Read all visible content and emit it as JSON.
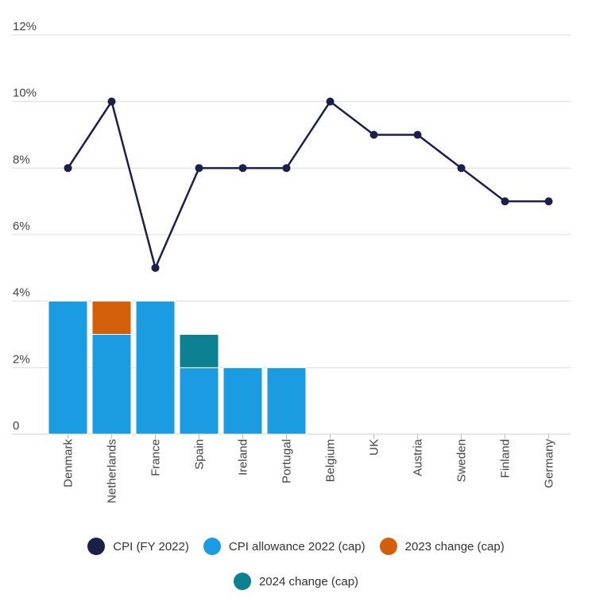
{
  "chart_data": {
    "type": "bar",
    "categories": [
      "Denmark",
      "Netherlands",
      "France",
      "Spain",
      "Ireland",
      "Portugal",
      "Belgium",
      "UK",
      "Austria",
      "Sweden",
      "Finland",
      "Germany"
    ],
    "ylim": [
      0,
      12
    ],
    "yticks": [
      "0",
      "2%",
      "4%",
      "6%",
      "8%",
      "10%",
      "12%"
    ],
    "grid": true,
    "legend_placement": "bottom",
    "series": [
      {
        "name": "CPI (FY 2022)",
        "kind": "line",
        "color": "#1b1f4b",
        "values": [
          8,
          10,
          5,
          8,
          8,
          8,
          10,
          9,
          9,
          8,
          7,
          7
        ]
      },
      {
        "name": "CPI allowance 2022 (cap)",
        "kind": "bar-stack",
        "color": "#1a9be2",
        "values": [
          4,
          3,
          4,
          2,
          2,
          2,
          null,
          null,
          null,
          null,
          null,
          null
        ]
      },
      {
        "name": "2023 change (cap)",
        "kind": "bar-stack",
        "color": "#d35f0b",
        "values": [
          null,
          1,
          null,
          null,
          null,
          null,
          null,
          null,
          null,
          null,
          null,
          null
        ]
      },
      {
        "name": "2024 change (cap)",
        "kind": "bar-stack",
        "color": "#0a8090",
        "values": [
          null,
          null,
          null,
          1,
          null,
          null,
          null,
          null,
          null,
          null,
          null,
          null
        ]
      }
    ]
  },
  "legend": {
    "row1": [
      "CPI (FY 2022)",
      "CPI allowance 2022 (cap)",
      "2023 change (cap)"
    ],
    "row2": [
      "2024 change (cap)"
    ]
  }
}
